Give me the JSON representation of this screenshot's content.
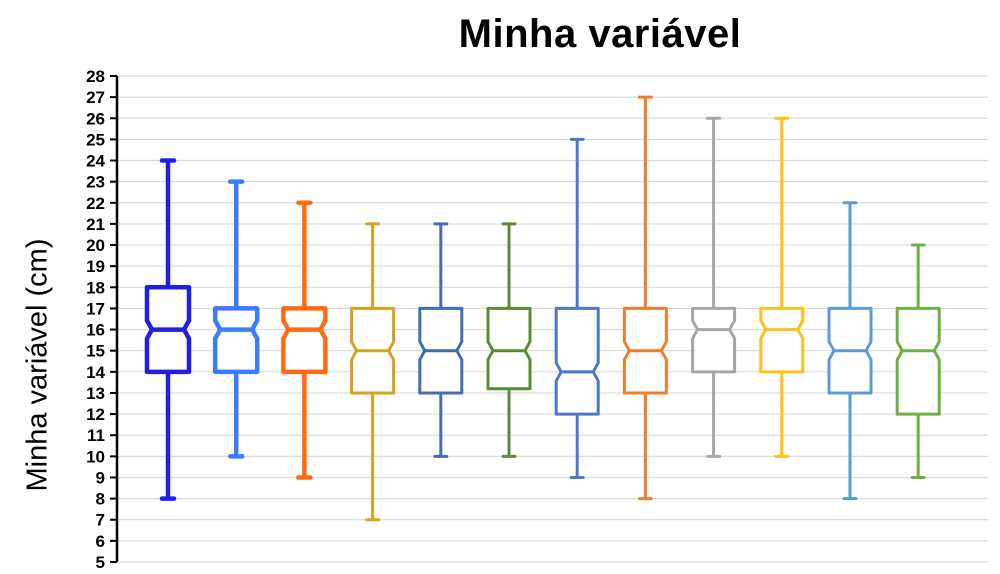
{
  "chart_data": {
    "type": "box",
    "title": "Minha variável",
    "xlabel": "",
    "ylabel": "Minha variável (cm)",
    "ylim": [
      5,
      28
    ],
    "yticks": [
      5,
      6,
      7,
      8,
      9,
      10,
      11,
      12,
      13,
      14,
      15,
      16,
      17,
      18,
      19,
      20,
      21,
      22,
      23,
      24,
      25,
      26,
      27,
      28
    ],
    "grid": true,
    "notched": true,
    "boxes": [
      {
        "min": 8,
        "q1": 14,
        "median": 16,
        "q3": 18,
        "max": 24,
        "color": "#1f1fe6"
      },
      {
        "min": 10,
        "q1": 14,
        "median": 16,
        "q3": 17,
        "max": 23,
        "color": "#3a7bff"
      },
      {
        "min": 9,
        "q1": 14,
        "median": 16,
        "q3": 17,
        "max": 22,
        "color": "#ff6a13"
      },
      {
        "min": 7,
        "q1": 13,
        "median": 15,
        "q3": 17,
        "max": 21,
        "color": "#d6a21e"
      },
      {
        "min": 10,
        "q1": 13,
        "median": 15,
        "q3": 17,
        "max": 21,
        "color": "#3f6fb1"
      },
      {
        "min": 10,
        "q1": 13.2,
        "median": 15,
        "q3": 17,
        "max": 21,
        "color": "#5a8b34"
      },
      {
        "min": 9,
        "q1": 12,
        "median": 14,
        "q3": 17,
        "max": 25,
        "color": "#4a78c2"
      },
      {
        "min": 8,
        "q1": 13,
        "median": 15,
        "q3": 17,
        "max": 27,
        "color": "#f07d2e"
      },
      {
        "min": 10,
        "q1": 14,
        "median": 16,
        "q3": 17,
        "max": 26,
        "color": "#a6a6a6"
      },
      {
        "min": 10,
        "q1": 14,
        "median": 16,
        "q3": 17,
        "max": 26,
        "color": "#ffc117"
      },
      {
        "min": 8,
        "q1": 13,
        "median": 15,
        "q3": 17,
        "max": 22,
        "color": "#5b9bd5"
      },
      {
        "min": 9,
        "q1": 12,
        "median": 15,
        "q3": 17,
        "max": 20,
        "color": "#70ad47"
      }
    ]
  }
}
